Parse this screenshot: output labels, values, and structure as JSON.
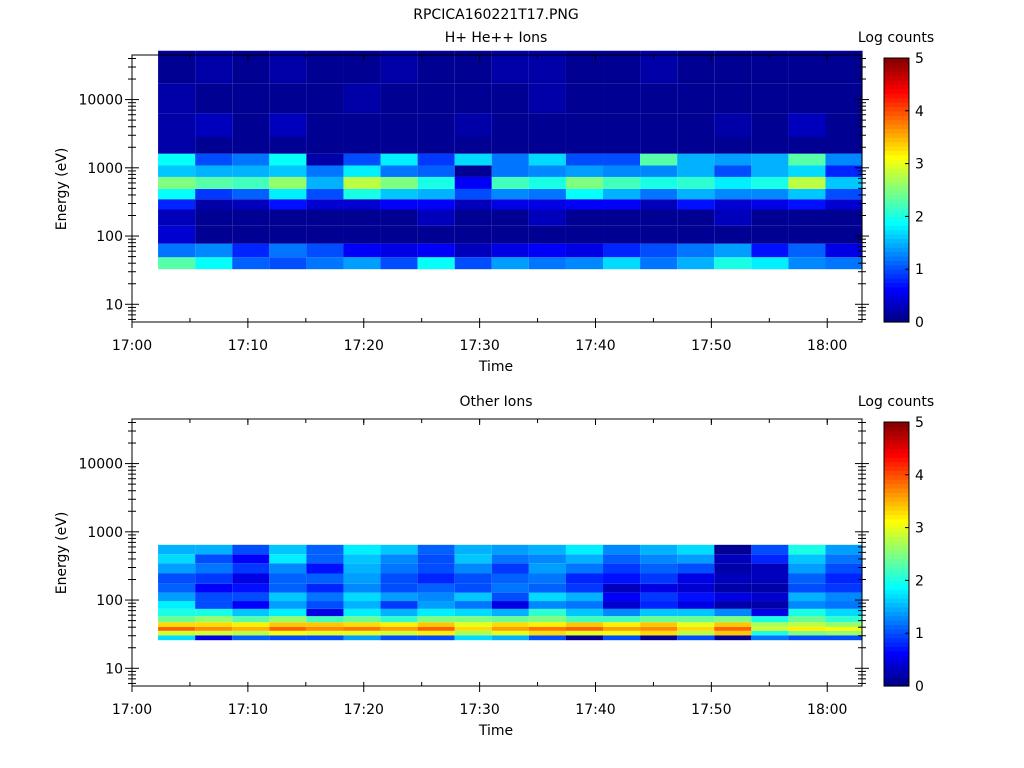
{
  "figure": {
    "title": "RPCICA160221T17.PNG"
  },
  "colorscale": {
    "stops": [
      "#00007f",
      "#0000ff",
      "#007fff",
      "#00ffff",
      "#7fff7f",
      "#ffff00",
      "#ff7f00",
      "#ff0000",
      "#7f0000"
    ],
    "label": "Log counts",
    "range": [
      0,
      5
    ],
    "ticks": [
      "0",
      "1",
      "2",
      "3",
      "4",
      "5"
    ]
  },
  "chart_data": [
    {
      "type": "heatmap",
      "title": "H+ He++ Ions",
      "xlabel": "Time",
      "ylabel": "Energy (eV)",
      "y_scale": "log",
      "xlim": [
        "17:00",
        "18:03"
      ],
      "ylim": [
        5.5,
        45000
      ],
      "x_ticks": [
        "17:00",
        "17:10",
        "17:20",
        "17:30",
        "17:40",
        "17:50",
        "18:00"
      ],
      "y_ticks": [
        "10",
        "100",
        "1000",
        "10000"
      ],
      "colorbar_label": "Log counts",
      "time_start": [
        "17:02:15",
        "17:05:27",
        "17:08:39",
        "17:11:51",
        "17:15:03",
        "17:18:15",
        "17:21:27",
        "17:24:39",
        "17:27:51",
        "17:31:03",
        "17:34:15",
        "17:37:27",
        "17:40:39",
        "17:43:51",
        "17:47:03",
        "17:50:15",
        "17:53:27",
        "17:56:39",
        "17:59:51"
      ],
      "time_end": [
        "17:05:27",
        "17:08:39",
        "17:11:51",
        "17:15:03",
        "17:18:15",
        "17:21:27",
        "17:24:39",
        "17:27:51",
        "17:31:03",
        "17:34:15",
        "17:37:27",
        "17:40:39",
        "17:43:51",
        "17:47:03",
        "17:50:15",
        "17:53:27",
        "17:56:39",
        "17:59:51",
        "18:03:03"
      ],
      "energy_bins": [
        40,
        60,
        100,
        200,
        300,
        400,
        600,
        900,
        1300,
        2000,
        4000,
        10000,
        30000
      ],
      "log_counts": [
        [
          2.3,
          1.2,
          0.4,
          0.3,
          0.8,
          1.9,
          2.5,
          1.6,
          1.9,
          0.2,
          0.2,
          0.2,
          0.1
        ],
        [
          1.9,
          1.3,
          0.1,
          0.1,
          0.2,
          0.9,
          2.3,
          1.5,
          1.0,
          0.1,
          0.3,
          0.1,
          0.2
        ],
        [
          1.1,
          0.8,
          0.1,
          0.1,
          0.3,
          1.1,
          2.2,
          1.5,
          1.2,
          0.1,
          0.1,
          0.1,
          0.1
        ],
        [
          1.0,
          1.2,
          0.1,
          0.1,
          0.7,
          1.8,
          2.6,
          1.6,
          1.9,
          0.1,
          0.3,
          0.1,
          0.2
        ],
        [
          1.2,
          1.0,
          0.1,
          0.1,
          0.4,
          1.0,
          1.5,
          1.2,
          0.2,
          0.1,
          0.1,
          0.1,
          0.1
        ],
        [
          1.4,
          0.6,
          0.1,
          0.1,
          0.4,
          2.0,
          2.8,
          1.8,
          1.0,
          0.1,
          0.1,
          0.2,
          0.1
        ],
        [
          1.0,
          0.5,
          0.1,
          0.1,
          0.6,
          1.6,
          2.5,
          1.2,
          1.8,
          0.1,
          0.1,
          0.1,
          0.2
        ],
        [
          1.9,
          0.6,
          0.1,
          0.3,
          0.6,
          1.5,
          2.0,
          1.1,
          0.9,
          0.1,
          0.1,
          0.1,
          0.1
        ],
        [
          1.0,
          0.3,
          0.1,
          0.1,
          0.3,
          1.0,
          0.6,
          0.1,
          1.7,
          0.1,
          0.2,
          0.1,
          0.1
        ],
        [
          1.4,
          0.5,
          0.1,
          0.1,
          0.5,
          1.3,
          2.2,
          1.2,
          1.2,
          0.1,
          0.1,
          0.1,
          0.2
        ],
        [
          1.2,
          0.6,
          0.1,
          0.3,
          0.5,
          1.2,
          2.0,
          1.3,
          1.7,
          0.1,
          0.1,
          0.2,
          0.2
        ],
        [
          1.3,
          0.5,
          0.1,
          0.1,
          0.6,
          1.9,
          2.5,
          1.4,
          1.0,
          0.1,
          0.1,
          0.1,
          0.1
        ],
        [
          1.7,
          0.8,
          0.1,
          0.1,
          0.6,
          1.5,
          2.2,
          1.3,
          1.0,
          0.1,
          0.1,
          0.1,
          0.1
        ],
        [
          1.2,
          1.0,
          0.1,
          0.1,
          0.3,
          1.2,
          2.0,
          1.3,
          2.3,
          0.1,
          0.1,
          0.1,
          0.2
        ],
        [
          1.5,
          1.2,
          0.1,
          0.1,
          0.7,
          1.5,
          2.1,
          1.5,
          1.5,
          0.1,
          0.1,
          0.1,
          0.1
        ],
        [
          2.0,
          1.4,
          0.1,
          0.3,
          0.4,
          1.3,
          1.8,
          1.0,
          1.4,
          0.1,
          0.2,
          0.1,
          0.1
        ],
        [
          1.8,
          0.7,
          0.1,
          0.1,
          0.5,
          1.3,
          2.0,
          1.5,
          1.5,
          0.1,
          0.1,
          0.1,
          0.1
        ],
        [
          1.3,
          1.1,
          0.1,
          0.1,
          0.7,
          1.6,
          2.8,
          1.7,
          2.3,
          0.1,
          0.3,
          0.1,
          0.1
        ],
        [
          1.2,
          0.5,
          0.1,
          0.1,
          0.4,
          1.0,
          1.6,
          0.8,
          1.3,
          0.1,
          0.1,
          0.1,
          0.1
        ]
      ]
    },
    {
      "type": "heatmap",
      "title": "Other Ions",
      "xlabel": "Time",
      "ylabel": "Energy (eV)",
      "y_scale": "log",
      "xlim": [
        "17:00",
        "18:03"
      ],
      "ylim": [
        5.5,
        45000
      ],
      "x_ticks": [
        "17:00",
        "17:10",
        "17:20",
        "17:30",
        "17:40",
        "17:50",
        "18:00"
      ],
      "y_ticks": [
        "10",
        "100",
        "1000",
        "10000"
      ],
      "colorbar_label": "Log counts",
      "time_start": [
        "17:02:15",
        "17:05:27",
        "17:08:39",
        "17:11:51",
        "17:15:03",
        "17:18:15",
        "17:21:27",
        "17:24:39",
        "17:27:51",
        "17:31:03",
        "17:34:15",
        "17:37:27",
        "17:40:39",
        "17:43:51",
        "17:47:03",
        "17:50:15",
        "17:53:27",
        "17:56:39",
        "17:59:51"
      ],
      "time_end": [
        "17:05:27",
        "17:08:39",
        "17:11:51",
        "17:15:03",
        "17:18:15",
        "17:21:27",
        "17:24:39",
        "17:27:51",
        "17:31:03",
        "17:34:15",
        "17:37:27",
        "17:40:39",
        "17:43:51",
        "17:47:03",
        "17:50:15",
        "17:53:27",
        "17:56:39",
        "17:59:51",
        "18:03:03"
      ],
      "energy_bins": [
        28,
        33,
        38,
        43,
        52,
        65,
        85,
        110,
        150,
        200,
        300,
        400,
        550
      ],
      "log_counts": [
        [
          1.7,
          2.9,
          3.9,
          3.3,
          2.4,
          2.0,
          1.8,
          1.4,
          1.1,
          1.0,
          1.4,
          1.7,
          1.5
        ],
        [
          0.5,
          2.9,
          3.7,
          3.3,
          2.6,
          2.0,
          1.0,
          1.0,
          0.6,
          0.9,
          1.2,
          1.0,
          1.5
        ],
        [
          1.1,
          2.8,
          3.5,
          3.2,
          2.3,
          1.6,
          0.6,
          1.0,
          0.7,
          0.5,
          0.9,
          0.6,
          1.0
        ],
        [
          1.0,
          3.1,
          3.9,
          3.4,
          2.6,
          1.8,
          1.4,
          1.6,
          1.1,
          1.1,
          1.3,
          1.8,
          1.6
        ],
        [
          1.0,
          3.0,
          3.7,
          3.4,
          2.2,
          0.5,
          1.0,
          1.2,
          0.8,
          1.1,
          0.7,
          1.1,
          1.1
        ],
        [
          1.4,
          3.0,
          3.8,
          3.3,
          2.4,
          1.8,
          1.5,
          1.7,
          1.3,
          1.4,
          1.5,
          1.6,
          1.8
        ],
        [
          1.0,
          2.9,
          3.6,
          3.2,
          2.1,
          1.5,
          0.9,
          1.4,
          1.0,
          1.0,
          1.2,
          1.3,
          1.6
        ],
        [
          1.0,
          3.2,
          3.9,
          3.4,
          2.5,
          1.8,
          1.4,
          1.3,
          1.1,
          0.8,
          1.0,
          1.0,
          1.1
        ],
        [
          1.7,
          2.7,
          3.3,
          3.0,
          2.5,
          1.7,
          1.2,
          1.6,
          1.0,
          1.0,
          1.3,
          1.6,
          1.5
        ],
        [
          1.5,
          3.0,
          3.6,
          3.3,
          2.4,
          1.5,
          0.5,
          1.0,
          1.2,
          1.1,
          0.9,
          1.2,
          1.4
        ],
        [
          1.0,
          3.3,
          3.8,
          3.2,
          2.5,
          2.1,
          1.3,
          1.7,
          1.1,
          1.2,
          1.4,
          1.3,
          1.5
        ],
        [
          0.1,
          3.0,
          3.9,
          3.4,
          2.2,
          1.6,
          1.2,
          1.5,
          0.9,
          0.8,
          1.2,
          1.5,
          1.8
        ],
        [
          1.0,
          3.1,
          3.6,
          3.2,
          2.2,
          1.3,
          0.4,
          0.6,
          0.3,
          0.7,
          0.9,
          1.1,
          1.3
        ],
        [
          0.1,
          3.3,
          3.7,
          3.4,
          2.4,
          1.6,
          0.8,
          0.9,
          0.5,
          0.9,
          1.1,
          1.3,
          1.5
        ],
        [
          1.0,
          2.8,
          3.3,
          3.0,
          2.4,
          1.6,
          0.5,
          0.7,
          0.4,
          0.5,
          1.0,
          1.4,
          1.7
        ],
        [
          0.1,
          3.4,
          3.9,
          3.4,
          2.5,
          1.3,
          0.2,
          0.5,
          0.2,
          0.3,
          0.2,
          0.3,
          0.1
        ],
        [
          1.2,
          2.0,
          2.9,
          2.7,
          2.0,
          0.5,
          0.2,
          0.4,
          0.2,
          0.3,
          0.3,
          0.8,
          1.0
        ],
        [
          1.0,
          2.5,
          3.2,
          2.8,
          2.4,
          2.0,
          1.3,
          1.5,
          1.0,
          1.1,
          1.4,
          1.6,
          2.0
        ],
        [
          1.0,
          2.6,
          3.1,
          2.6,
          2.1,
          1.7,
          1.2,
          1.3,
          0.9,
          0.8,
          1.0,
          1.2,
          1.4
        ]
      ]
    }
  ]
}
